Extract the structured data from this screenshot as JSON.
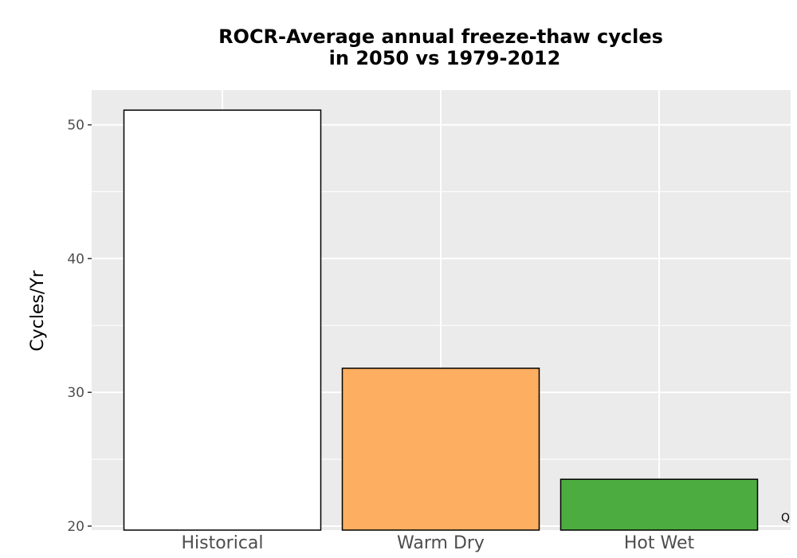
{
  "chart_data": {
    "type": "bar",
    "title_lines": [
      "ROCR-Average annual freeze-thaw cycles",
      "in 2050 vs 1979-2012"
    ],
    "xlabel": "",
    "ylabel": "Cycles/Yr",
    "categories": [
      "Historical",
      "Warm Dry",
      "Hot Wet"
    ],
    "values": [
      51.1,
      31.8,
      23.5
    ],
    "colors": [
      "#ffffff",
      "#fdae61",
      "#4dac3f"
    ],
    "bar_outline": "#000000",
    "ylim": [
      19.7,
      52.6
    ],
    "yticks": [
      20,
      30,
      40,
      50
    ],
    "grid": true,
    "panel_background": "#ebebeb",
    "corner_note": "Q"
  }
}
